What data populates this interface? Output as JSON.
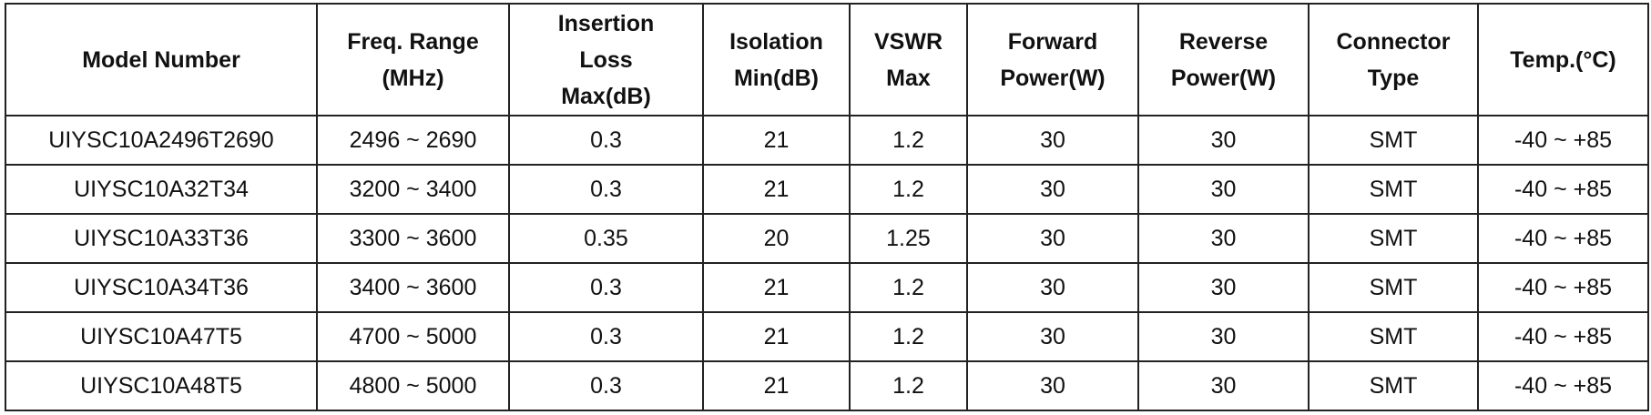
{
  "table": {
    "header": [
      [
        "Model Number"
      ],
      [
        "Freq. Range",
        "(MHz)"
      ],
      [
        "Insertion",
        "Loss",
        "Max(dB)"
      ],
      [
        "Isolation",
        "Min(dB)"
      ],
      [
        "VSWR",
        "Max"
      ],
      [
        "Forward",
        "Power(W)"
      ],
      [
        "Reverse",
        "Power(W)"
      ],
      [
        "Connector",
        "Type"
      ],
      [
        "Temp.(°C)"
      ]
    ],
    "rows": [
      [
        "UIYSC10A2496T2690",
        "2496 ~ 2690",
        "0.3",
        "21",
        "1.2",
        "30",
        "30",
        "SMT",
        "-40 ~ +85"
      ],
      [
        "UIYSC10A32T34",
        "3200 ~ 3400",
        "0.3",
        "21",
        "1.2",
        "30",
        "30",
        "SMT",
        "-40 ~ +85"
      ],
      [
        "UIYSC10A33T36",
        "3300 ~ 3600",
        "0.35",
        "20",
        "1.25",
        "30",
        "30",
        "SMT",
        "-40 ~ +85"
      ],
      [
        "UIYSC10A34T36",
        "3400 ~ 3600",
        "0.3",
        "21",
        "1.2",
        "30",
        "30",
        "SMT",
        "-40 ~ +85"
      ],
      [
        "UIYSC10A47T5",
        "4700 ~ 5000",
        "0.3",
        "21",
        "1.2",
        "30",
        "30",
        "SMT",
        "-40 ~ +85"
      ],
      [
        "UIYSC10A48T5",
        "4800 ~ 5000",
        "0.3",
        "21",
        "1.2",
        "30",
        "30",
        "SMT",
        "-40 ~ +85"
      ]
    ]
  }
}
